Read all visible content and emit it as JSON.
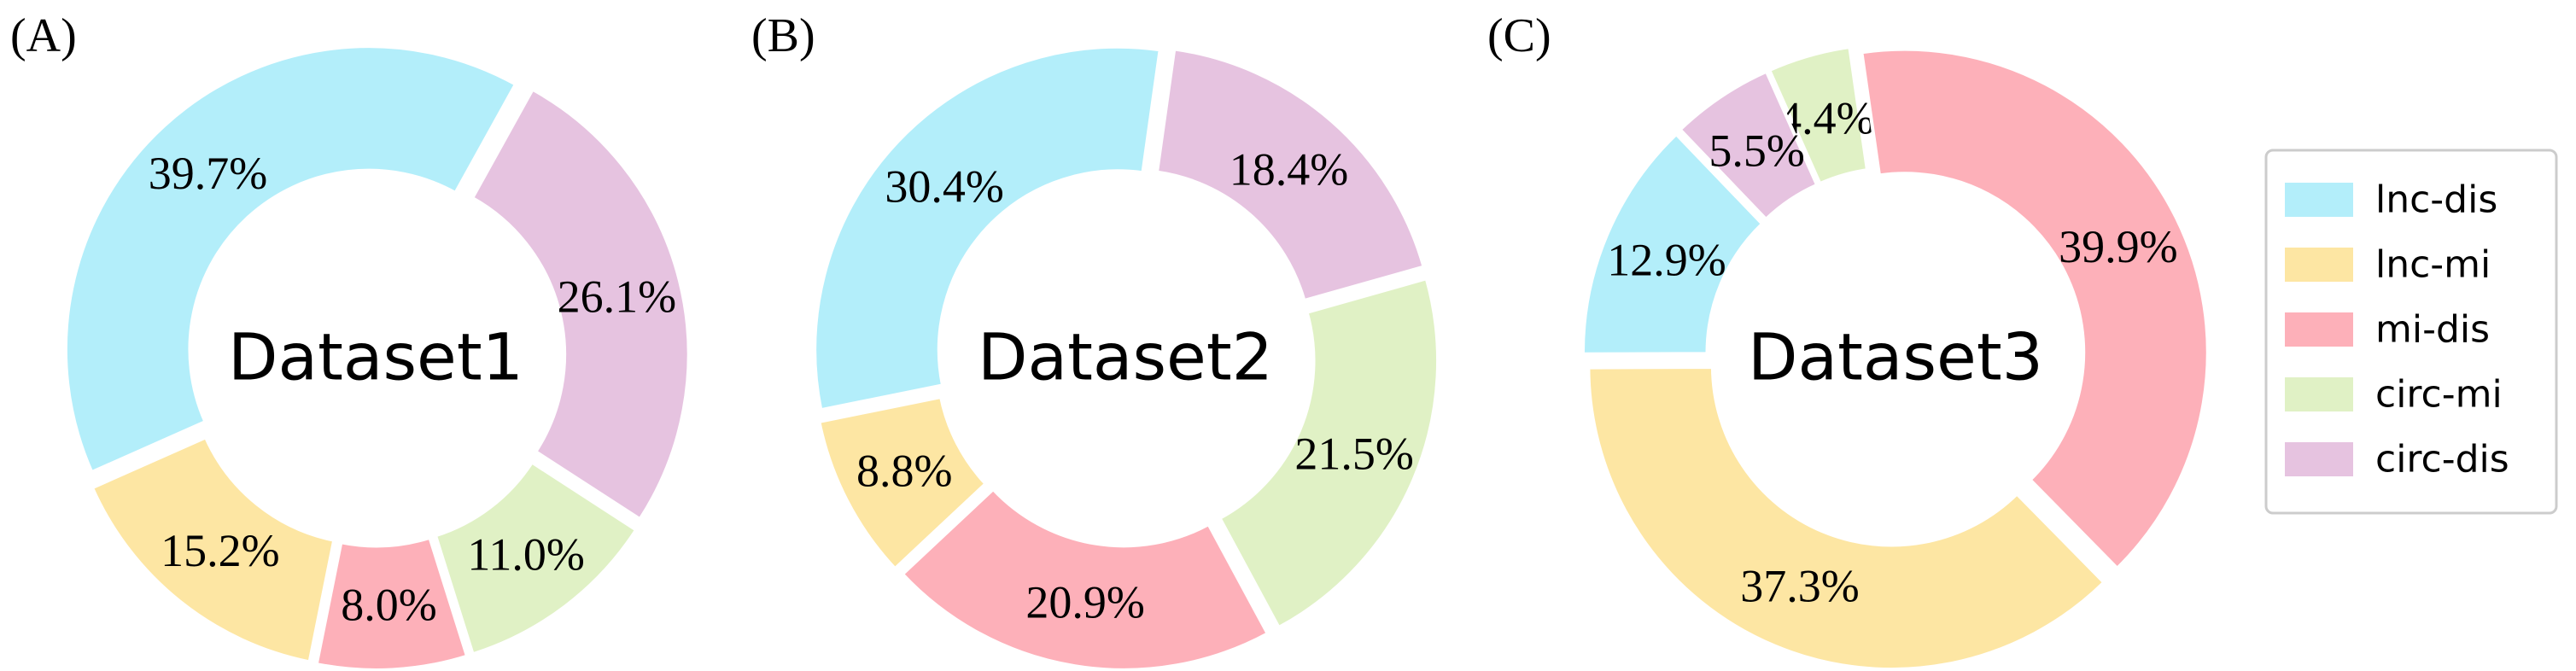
{
  "chart_data": [
    {
      "type": "pie",
      "panel_label": "(A)",
      "center_text": "Dataset1",
      "slices": [
        {
          "category": "circ-dis",
          "value": 26.1,
          "label": "26.1%"
        },
        {
          "category": "circ-mi",
          "value": 11.0,
          "label": "11.0%"
        },
        {
          "category": "mi-dis",
          "value": 8.0,
          "label": "8.0%"
        },
        {
          "category": "lnc-mi",
          "value": 15.2,
          "label": "15.2%"
        },
        {
          "category": "lnc-dis",
          "value": 39.7,
          "label": "39.7%"
        }
      ]
    },
    {
      "type": "pie",
      "panel_label": "(B)",
      "center_text": "Dataset2",
      "slices": [
        {
          "category": "circ-dis",
          "value": 18.4,
          "label": "18.4%"
        },
        {
          "category": "circ-mi",
          "value": 21.5,
          "label": "21.5%"
        },
        {
          "category": "mi-dis",
          "value": 20.9,
          "label": "20.9%"
        },
        {
          "category": "lnc-mi",
          "value": 8.8,
          "label": "8.8%"
        },
        {
          "category": "lnc-dis",
          "value": 30.4,
          "label": "30.4%"
        }
      ]
    },
    {
      "type": "pie",
      "panel_label": "(C)",
      "center_text": "Dataset3",
      "slices": [
        {
          "category": "circ-mi",
          "value": 4.4,
          "label": "4.4%"
        },
        {
          "category": "mi-dis",
          "value": 39.9,
          "label": "39.9%"
        },
        {
          "category": "lnc-mi",
          "value": 37.3,
          "label": "37.3%"
        },
        {
          "category": "lnc-dis",
          "value": 12.9,
          "label": "12.9%"
        },
        {
          "category": "circ-dis",
          "value": 5.5,
          "label": "5.5%"
        }
      ]
    }
  ],
  "legend": {
    "placement": "right",
    "items": [
      {
        "key": "lnc-dis",
        "label": "lnc-dis",
        "color": "#b3eefa"
      },
      {
        "key": "lnc-mi",
        "label": "lnc-mi",
        "color": "#fde6a3"
      },
      {
        "key": "mi-dis",
        "label": "mi-dis",
        "color": "#fdb0b9"
      },
      {
        "key": "circ-mi",
        "label": "circ-mi",
        "color": "#e0f1c5"
      },
      {
        "key": "circ-dis",
        "label": "circ-dis",
        "color": "#e6c3e0"
      }
    ]
  }
}
